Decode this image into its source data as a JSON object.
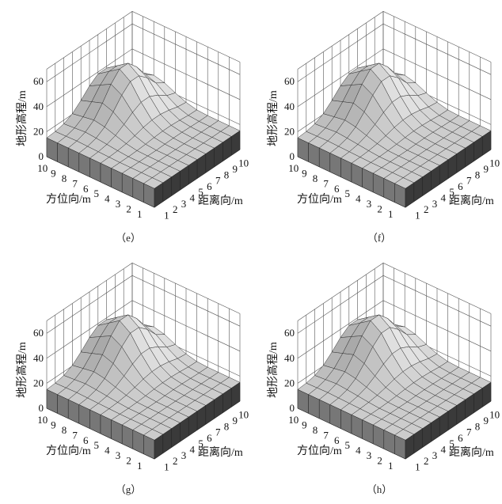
{
  "chart_data": [
    {
      "type": "surface3d",
      "caption": "（e）",
      "xlabel": "方位向/m",
      "ylabel": "距离向/m",
      "zlabel": "地形高程/m",
      "xticks": [
        "1",
        "2",
        "3",
        "4",
        "5",
        "6",
        "7",
        "8",
        "9",
        "10"
      ],
      "yticks": [
        "1",
        "2",
        "3",
        "4",
        "5",
        "6",
        "7",
        "8",
        "9",
        "10"
      ],
      "zticks": [
        "0",
        "20",
        "40",
        "60"
      ],
      "zlim": [
        0,
        70
      ]
    },
    {
      "type": "surface3d",
      "caption": "（f）",
      "xlabel": "方位向/m",
      "ylabel": "距离向/m",
      "zlabel": "地形高程/m",
      "xticks": [
        "1",
        "2",
        "3",
        "4",
        "5",
        "6",
        "7",
        "8",
        "9",
        "10"
      ],
      "yticks": [
        "1",
        "2",
        "3",
        "4",
        "5",
        "6",
        "7",
        "8",
        "9",
        "10"
      ],
      "zticks": [
        "0",
        "20",
        "40",
        "60"
      ],
      "zlim": [
        0,
        70
      ]
    },
    {
      "type": "surface3d",
      "caption": "（g）",
      "xlabel": "方位向/m",
      "ylabel": "距离向/m",
      "zlabel": "地形高程/m",
      "xticks": [
        "1",
        "2",
        "3",
        "4",
        "5",
        "6",
        "7",
        "8",
        "9",
        "10"
      ],
      "yticks": [
        "1",
        "2",
        "3",
        "4",
        "5",
        "6",
        "7",
        "8",
        "9",
        "10"
      ],
      "zticks": [
        "0",
        "20",
        "40",
        "60"
      ],
      "zlim": [
        0,
        70
      ]
    },
    {
      "type": "surface3d",
      "caption": "（h）",
      "xlabel": "方位向/m",
      "ylabel": "距离向/m",
      "zlabel": "地形高程/m",
      "xticks": [
        "1",
        "2",
        "3",
        "4",
        "5",
        "6",
        "7",
        "8",
        "9",
        "10"
      ],
      "yticks": [
        "1",
        "2",
        "3",
        "4",
        "5",
        "6",
        "7",
        "8",
        "9",
        "10"
      ],
      "zticks": [
        "0",
        "20",
        "40",
        "60"
      ],
      "zlim": [
        0,
        70
      ]
    }
  ],
  "terrain_elevation_m": [
    [
      15,
      15,
      15,
      15,
      15,
      15,
      15,
      15,
      15,
      15
    ],
    [
      15,
      15,
      15,
      15,
      15,
      15,
      15,
      15,
      15,
      15
    ],
    [
      15,
      15,
      15,
      15,
      15,
      15,
      15,
      15,
      15,
      15
    ],
    [
      15,
      15,
      15,
      15,
      15,
      16,
      16,
      16,
      15,
      15
    ],
    [
      15,
      15,
      15,
      16,
      17,
      18,
      18,
      18,
      17,
      16
    ],
    [
      15,
      16,
      17,
      19,
      22,
      25,
      26,
      25,
      22,
      19
    ],
    [
      15,
      16,
      18,
      23,
      30,
      37,
      40,
      37,
      30,
      23
    ],
    [
      15,
      17,
      20,
      27,
      38,
      48,
      53,
      48,
      38,
      27
    ],
    [
      15,
      17,
      20,
      27,
      38,
      48,
      53,
      48,
      38,
      27
    ],
    [
      15,
      16,
      18,
      23,
      30,
      37,
      40,
      37,
      30,
      23
    ]
  ],
  "colors": {
    "surface_light": "#e2e2e2",
    "surface_dark": "#8a8a8a",
    "wall_left": "#777777",
    "wall_right": "#3a3a3a",
    "grid": "#555555"
  }
}
